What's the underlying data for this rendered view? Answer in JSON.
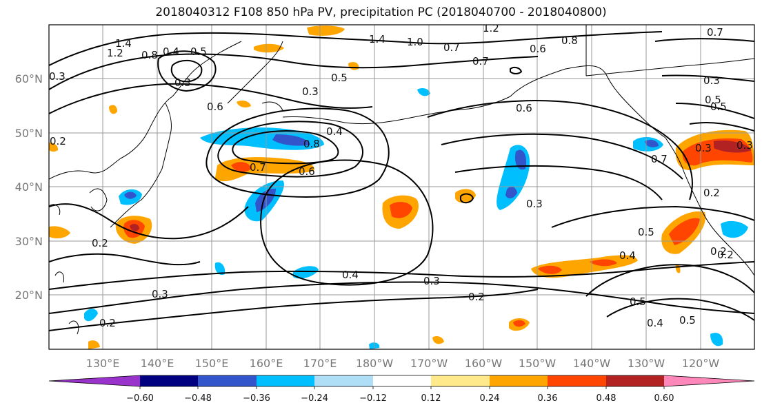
{
  "map": {
    "title": "2018040312 F108 850 hPa PV, precipitation PC (2018040700 - 2018040800)",
    "lon_labels": [
      "130°E",
      "140°E",
      "150°E",
      "160°E",
      "170°E",
      "180°W",
      "170°W",
      "160°W",
      "150°W",
      "140°W",
      "130°W",
      "120°W"
    ],
    "lat_labels": [
      "60°N",
      "50°N",
      "40°N",
      "30°N",
      "20°N"
    ],
    "colorbar": {
      "tick_labels": [
        "−0.60",
        "−0.48",
        "−0.36",
        "−0.24",
        "−0.12",
        "0.12",
        "0.24",
        "0.36",
        "0.48",
        "0.60"
      ],
      "colors": [
        "#9933cc",
        "#000080",
        "#3355cc",
        "#00bfff",
        "#aedff7",
        "#ffffff",
        "#ffe98a",
        "#ffa500",
        "#ff4500",
        "#b22222",
        "#ff88bb"
      ]
    },
    "contour_labels": [
      "1.4",
      "1.2",
      "0.8",
      "0.4",
      "0.5",
      "0.3",
      "0.6",
      "0.3",
      "0.5",
      "0.4",
      "0.8",
      "0.7",
      "0.6",
      "0.2",
      "1.4",
      "1.0",
      "0.7",
      "0.7",
      "0.6",
      "0.8",
      "0.6",
      "0.5",
      "0.3",
      "0.3",
      "0.5",
      "0.4",
      "0.3",
      "0.2",
      "0.4",
      "0.3",
      "0.2",
      "0.5",
      "0.4",
      "0.5",
      "0.2",
      "0.3",
      "0.2",
      "0.2",
      "0.3",
      "0.5",
      "0.7",
      "0.2",
      "1.2",
      "0.7",
      "0.3"
    ],
    "legend_colors": {
      "contour": "#000000",
      "grid": "#999999"
    }
  }
}
